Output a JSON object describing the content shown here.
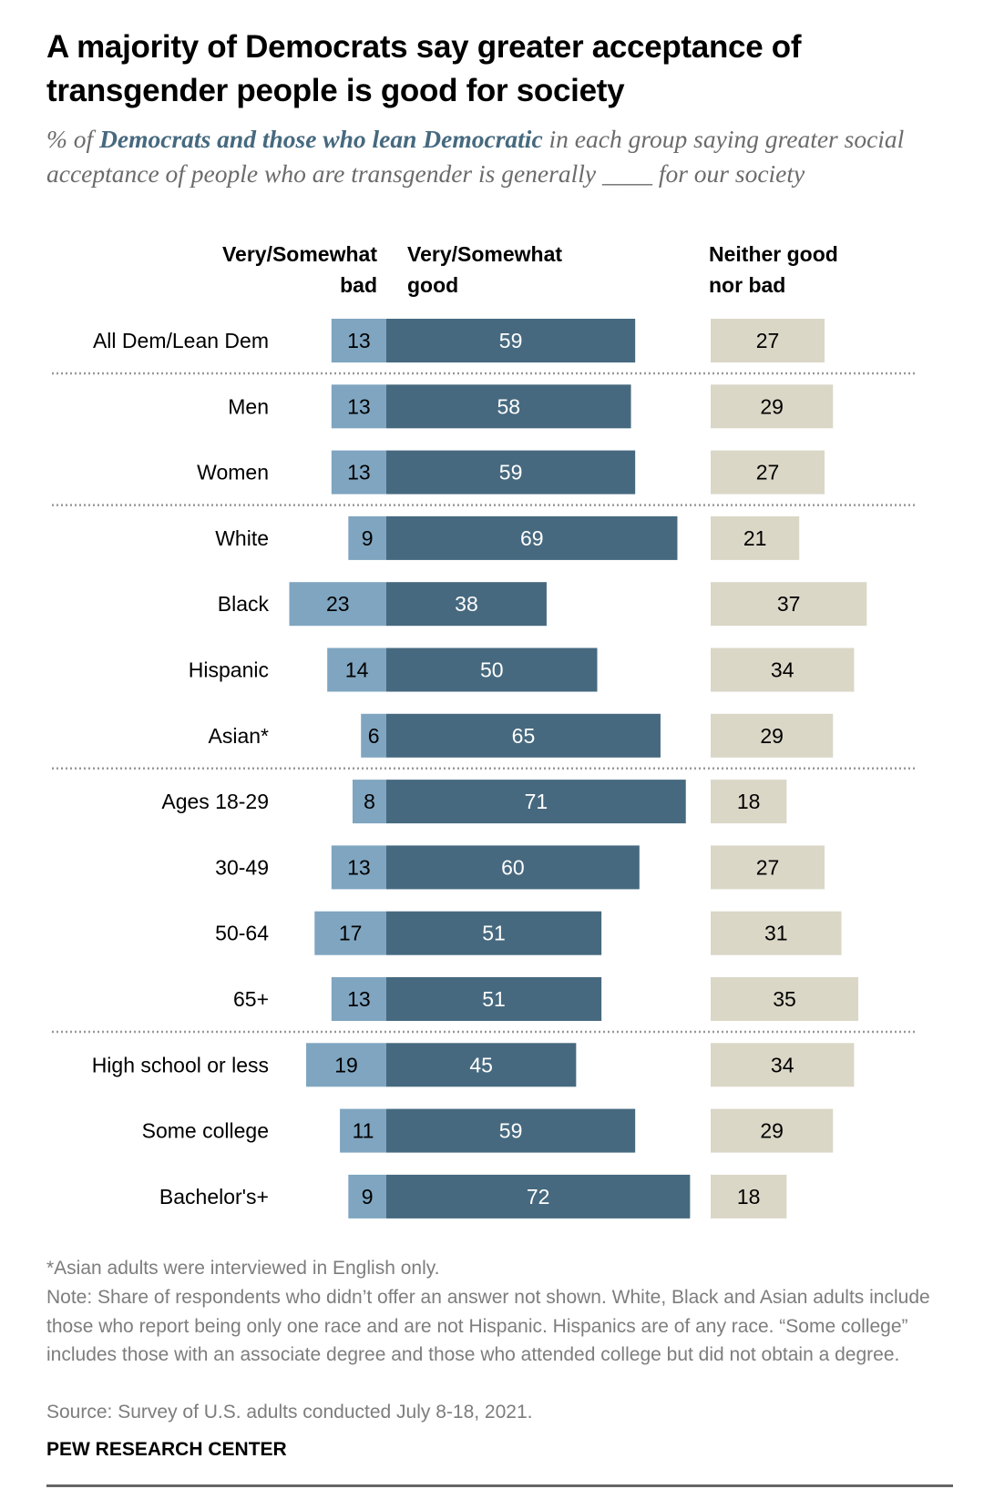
{
  "title": "A majority of Democrats say greater acceptance of transgender people is good for society",
  "subtitle": {
    "prefix": "% of ",
    "highlight": "Democrats and those who lean Democratic",
    "suffix": " in each group saying greater social acceptance of people who are transgender is generally ____ for our society"
  },
  "colors": {
    "bad": "#7fa5c0",
    "good": "#46697f",
    "neither": "#dad7c7"
  },
  "chart_data": {
    "type": "bar",
    "orientation": "horizontal-diverging-stacked",
    "title": "A majority of Democrats say greater acceptance of transgender people is good for society",
    "column_headers": {
      "bad": "Very/Somewhat bad",
      "good": "Very/Somewhat good",
      "neither": "Neither good nor bad"
    },
    "categories": [
      "All Dem/Lean Dem",
      "Men",
      "Women",
      "White",
      "Black",
      "Hispanic",
      "Asian*",
      "Ages 18-29",
      "30-49",
      "50-64",
      "65+",
      "High school or less",
      "Some college",
      "Bachelor's+"
    ],
    "groups_separated_after": [
      0,
      2,
      6,
      10
    ],
    "series": [
      {
        "name": "Very/Somewhat bad",
        "values": [
          13,
          13,
          13,
          9,
          23,
          14,
          6,
          8,
          13,
          17,
          13,
          19,
          11,
          9
        ]
      },
      {
        "name": "Very/Somewhat good",
        "values": [
          59,
          58,
          59,
          69,
          38,
          50,
          65,
          71,
          60,
          51,
          51,
          45,
          59,
          72
        ]
      },
      {
        "name": "Neither good nor bad",
        "values": [
          27,
          29,
          27,
          21,
          37,
          34,
          29,
          18,
          27,
          31,
          35,
          34,
          29,
          18
        ]
      }
    ],
    "xlabel": "",
    "ylabel": "",
    "unit": "%"
  },
  "footnotes": {
    "asterisk": "*Asian adults were interviewed in English only.",
    "note": "Note: Share of respondents who didn’t offer an answer not shown. White, Black and Asian adults include those who report being only one race and are not Hispanic. Hispanics are of any race. “Some college” includes those with an associate degree and those who attended college but did not obtain a degree.",
    "source": "Source: Survey of U.S. adults conducted July 8-18, 2021."
  },
  "brand": "PEW RESEARCH CENTER"
}
